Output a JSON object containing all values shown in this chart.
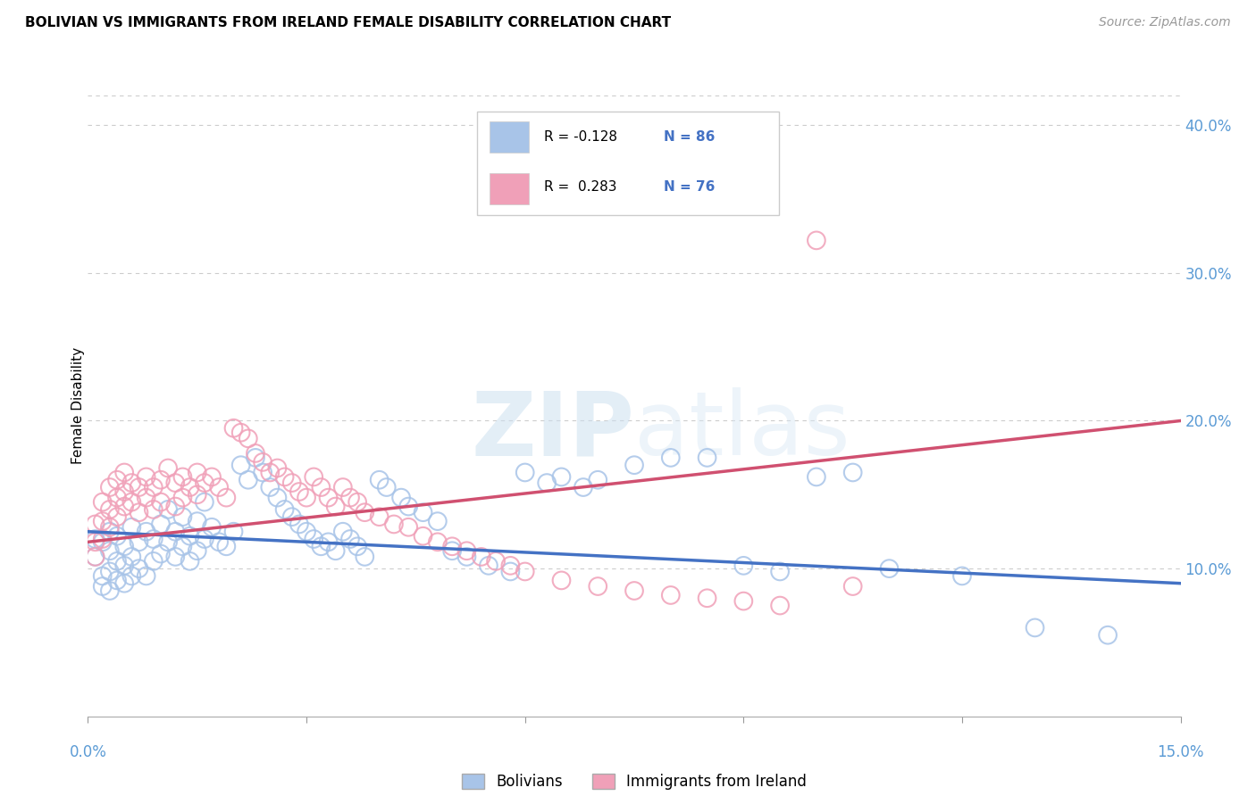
{
  "title": "BOLIVIAN VS IMMIGRANTS FROM IRELAND FEMALE DISABILITY CORRELATION CHART",
  "source": "Source: ZipAtlas.com",
  "ylabel": "Female Disability",
  "legend_label1": "Bolivians",
  "legend_label2": "Immigrants from Ireland",
  "r1": -0.128,
  "n1": 86,
  "r2": 0.283,
  "n2": 76,
  "watermark_zip": "ZIP",
  "watermark_atlas": "atlas",
  "blue_color": "#a8c4e8",
  "pink_color": "#f0a0b8",
  "blue_line_color": "#4472c4",
  "pink_line_color": "#d05070",
  "right_axis_color": "#5b9bd5",
  "legend_text_color": "#4472c4",
  "xlim": [
    0.0,
    0.15
  ],
  "ylim": [
    0.0,
    0.42
  ],
  "yticks": [
    0.1,
    0.2,
    0.3,
    0.4
  ],
  "ytick_labels": [
    "10.0%",
    "20.0%",
    "30.0%",
    "40.0%"
  ],
  "blue_scatter_x": [
    0.001,
    0.001,
    0.002,
    0.002,
    0.002,
    0.003,
    0.003,
    0.003,
    0.003,
    0.004,
    0.004,
    0.004,
    0.005,
    0.005,
    0.005,
    0.006,
    0.006,
    0.006,
    0.007,
    0.007,
    0.008,
    0.008,
    0.009,
    0.009,
    0.01,
    0.01,
    0.011,
    0.011,
    0.012,
    0.012,
    0.013,
    0.013,
    0.014,
    0.014,
    0.015,
    0.015,
    0.016,
    0.016,
    0.017,
    0.018,
    0.019,
    0.02,
    0.021,
    0.022,
    0.023,
    0.024,
    0.025,
    0.026,
    0.027,
    0.028,
    0.029,
    0.03,
    0.031,
    0.032,
    0.033,
    0.034,
    0.035,
    0.036,
    0.037,
    0.038,
    0.04,
    0.041,
    0.043,
    0.044,
    0.046,
    0.048,
    0.05,
    0.052,
    0.055,
    0.058,
    0.06,
    0.063,
    0.065,
    0.068,
    0.07,
    0.075,
    0.08,
    0.085,
    0.09,
    0.095,
    0.1,
    0.105,
    0.11,
    0.12,
    0.13,
    0.14
  ],
  "blue_scatter_y": [
    0.12,
    0.108,
    0.118,
    0.095,
    0.088,
    0.125,
    0.112,
    0.098,
    0.085,
    0.122,
    0.105,
    0.092,
    0.115,
    0.102,
    0.09,
    0.128,
    0.108,
    0.095,
    0.118,
    0.1,
    0.125,
    0.095,
    0.12,
    0.105,
    0.13,
    0.11,
    0.14,
    0.118,
    0.125,
    0.108,
    0.135,
    0.115,
    0.122,
    0.105,
    0.132,
    0.112,
    0.145,
    0.12,
    0.128,
    0.118,
    0.115,
    0.125,
    0.17,
    0.16,
    0.175,
    0.165,
    0.155,
    0.148,
    0.14,
    0.135,
    0.13,
    0.125,
    0.12,
    0.115,
    0.118,
    0.112,
    0.125,
    0.12,
    0.115,
    0.108,
    0.16,
    0.155,
    0.148,
    0.142,
    0.138,
    0.132,
    0.112,
    0.108,
    0.102,
    0.098,
    0.165,
    0.158,
    0.162,
    0.155,
    0.16,
    0.17,
    0.175,
    0.175,
    0.102,
    0.098,
    0.162,
    0.165,
    0.1,
    0.095,
    0.06,
    0.055
  ],
  "pink_scatter_x": [
    0.001,
    0.001,
    0.001,
    0.002,
    0.002,
    0.002,
    0.003,
    0.003,
    0.003,
    0.004,
    0.004,
    0.004,
    0.005,
    0.005,
    0.005,
    0.006,
    0.006,
    0.007,
    0.007,
    0.008,
    0.008,
    0.009,
    0.009,
    0.01,
    0.01,
    0.011,
    0.012,
    0.012,
    0.013,
    0.013,
    0.014,
    0.015,
    0.015,
    0.016,
    0.017,
    0.018,
    0.019,
    0.02,
    0.021,
    0.022,
    0.023,
    0.024,
    0.025,
    0.026,
    0.027,
    0.028,
    0.029,
    0.03,
    0.031,
    0.032,
    0.033,
    0.034,
    0.035,
    0.036,
    0.037,
    0.038,
    0.04,
    0.042,
    0.044,
    0.046,
    0.048,
    0.05,
    0.052,
    0.054,
    0.056,
    0.058,
    0.06,
    0.065,
    0.07,
    0.075,
    0.08,
    0.085,
    0.09,
    0.095,
    0.1,
    0.105
  ],
  "pink_scatter_y": [
    0.13,
    0.118,
    0.108,
    0.145,
    0.132,
    0.12,
    0.155,
    0.14,
    0.128,
    0.16,
    0.148,
    0.135,
    0.165,
    0.152,
    0.142,
    0.158,
    0.145,
    0.155,
    0.138,
    0.162,
    0.148,
    0.155,
    0.14,
    0.16,
    0.145,
    0.168,
    0.158,
    0.142,
    0.162,
    0.148,
    0.155,
    0.165,
    0.15,
    0.158,
    0.162,
    0.155,
    0.148,
    0.195,
    0.192,
    0.188,
    0.178,
    0.172,
    0.165,
    0.168,
    0.162,
    0.158,
    0.152,
    0.148,
    0.162,
    0.155,
    0.148,
    0.142,
    0.155,
    0.148,
    0.145,
    0.138,
    0.135,
    0.13,
    0.128,
    0.122,
    0.118,
    0.115,
    0.112,
    0.108,
    0.105,
    0.102,
    0.098,
    0.092,
    0.088,
    0.085,
    0.082,
    0.08,
    0.078,
    0.075,
    0.322,
    0.088
  ],
  "blue_trend_x": [
    0.0,
    0.15
  ],
  "blue_trend_y": [
    0.125,
    0.09
  ],
  "pink_trend_x": [
    0.0,
    0.15
  ],
  "pink_trend_y": [
    0.118,
    0.2
  ]
}
